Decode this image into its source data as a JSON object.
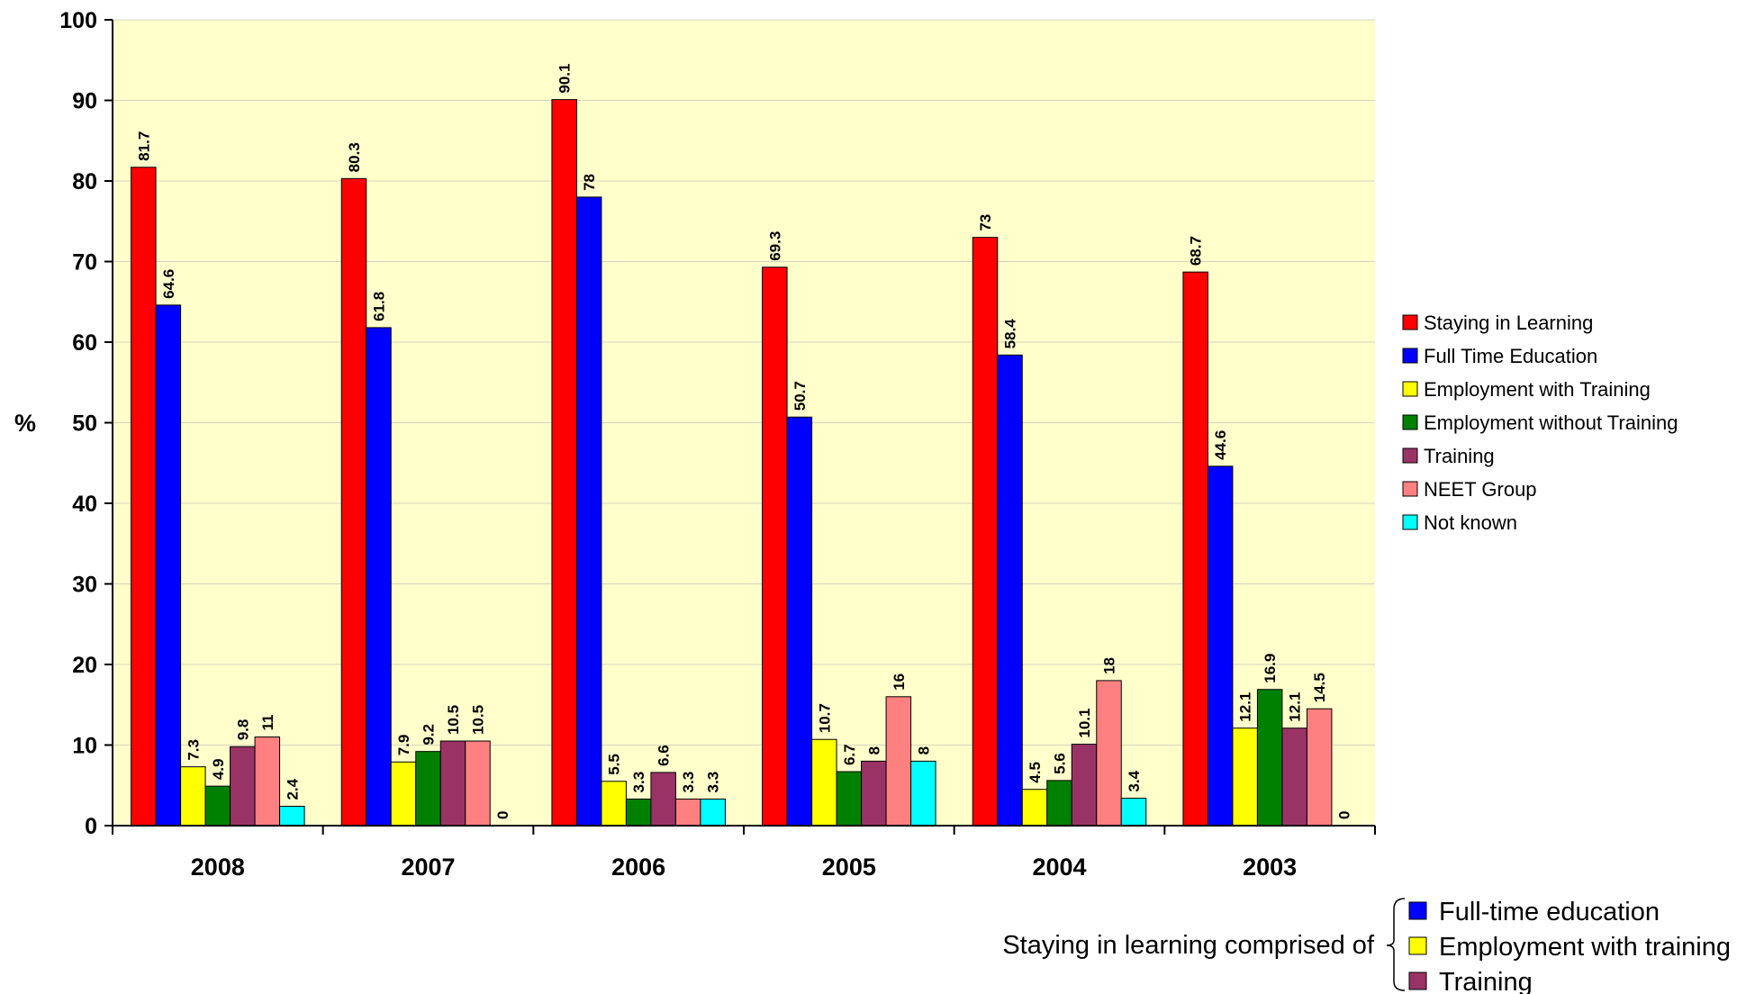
{
  "chart_data": {
    "type": "bar",
    "ylabel": "%",
    "ylim": [
      0,
      100
    ],
    "yticks": [
      0,
      10,
      20,
      30,
      40,
      50,
      60,
      70,
      80,
      90,
      100
    ],
    "categories": [
      "2008",
      "2007",
      "2006",
      "2005",
      "2004",
      "2003"
    ],
    "series": [
      {
        "name": "Staying in Learning",
        "color": "#ff0000",
        "values": [
          81.7,
          80.3,
          90.1,
          69.3,
          73,
          68.7
        ],
        "labels": [
          "81.7",
          "80.3",
          "90.1",
          "69.3",
          "73",
          "68.7"
        ]
      },
      {
        "name": "Full Time Education",
        "color": "#0000ff",
        "values": [
          64.6,
          61.8,
          78,
          50.7,
          58.4,
          44.6
        ],
        "labels": [
          "64.6",
          "61.8",
          "78",
          "50.7",
          "58.4",
          "44.6"
        ]
      },
      {
        "name": "Employment with Training",
        "color": "#ffff00",
        "values": [
          7.3,
          7.9,
          5.5,
          10.7,
          4.5,
          12.1
        ],
        "labels": [
          "7.3",
          "7.9",
          "5.5",
          "10.7",
          "4.5",
          "12.1"
        ]
      },
      {
        "name": "Employment without Training",
        "color": "#008000",
        "values": [
          4.9,
          9.2,
          3.3,
          6.7,
          5.6,
          16.9
        ],
        "labels": [
          "4.9",
          "9.2",
          "3.3",
          "6.7",
          "5.6",
          "16.9"
        ]
      },
      {
        "name": "Training",
        "color": "#993366",
        "values": [
          9.8,
          10.5,
          6.6,
          8,
          10.1,
          12.1
        ],
        "labels": [
          "9.8",
          "10.5",
          "6.6",
          "8",
          "10.1",
          "12.1"
        ]
      },
      {
        "name": "NEET Group",
        "color": "#ff8080",
        "values": [
          11,
          10.5,
          3.3,
          16,
          18,
          14.5
        ],
        "labels": [
          "11",
          "10.5",
          "3.3",
          "16",
          "18",
          "14.5"
        ]
      },
      {
        "name": "Not known",
        "color": "#00ffff",
        "values": [
          2.4,
          0,
          3.3,
          8,
          3.4,
          0
        ],
        "labels": [
          "2.4",
          "0",
          "3.3",
          "8",
          "3.4",
          "0"
        ]
      }
    ],
    "plot_background": "#ffffcc",
    "grid": true,
    "legend_position": "right",
    "annotation": {
      "prefix": "Staying in learning comprised of",
      "items": [
        {
          "label": "Full-time education",
          "color": "#0000ff"
        },
        {
          "label": "Employment with training",
          "color": "#ffff00"
        },
        {
          "label": "Training",
          "color": "#993366"
        }
      ]
    }
  }
}
